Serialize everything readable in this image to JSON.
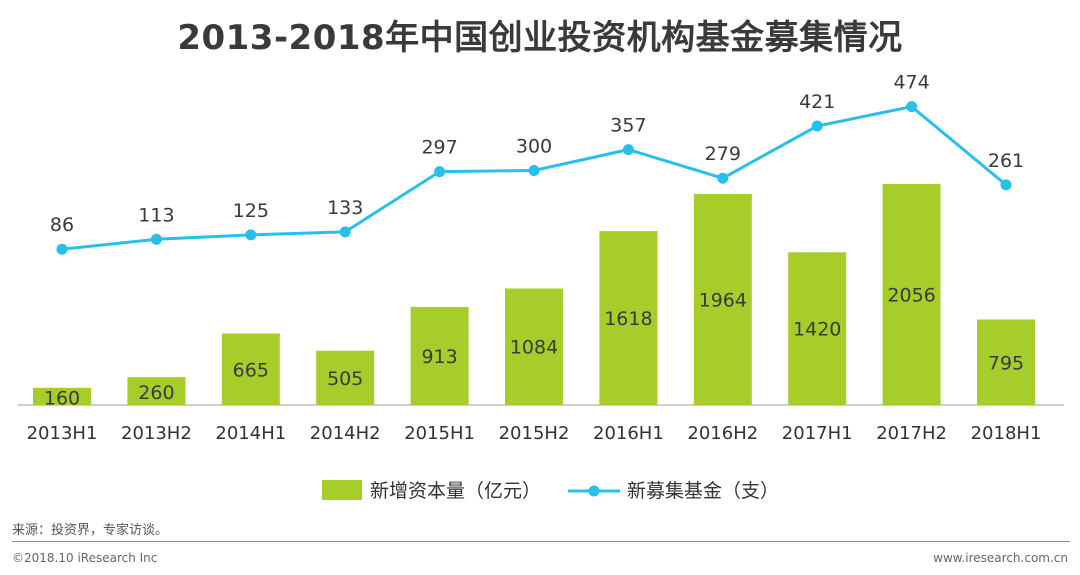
{
  "chart_data": {
    "type": "bar",
    "title": "2013-2018年中国创业投资机构基金募集情况",
    "categories": [
      "2013H1",
      "2013H2",
      "2014H1",
      "2014H2",
      "2015H1",
      "2015H2",
      "2016H1",
      "2016H2",
      "2017H1",
      "2017H2",
      "2018H1"
    ],
    "series": [
      {
        "name": "新增资本量（亿元）",
        "type": "bar",
        "color": "#a6cd2a",
        "values": [
          160,
          260,
          665,
          505,
          913,
          1084,
          1618,
          1964,
          1420,
          2056,
          795
        ]
      },
      {
        "name": "新募集基金（支）",
        "type": "line",
        "color": "#28c0ea",
        "values": [
          86,
          113,
          125,
          133,
          297,
          300,
          357,
          279,
          421,
          474,
          261
        ]
      }
    ],
    "legend": {
      "position": "bottom"
    },
    "grid": false
  },
  "footer": {
    "source": "来源：投资界，专家访谈。",
    "copyright": "©2018.10 iResearch Inc",
    "website": "www.iresearch.com.cn"
  }
}
